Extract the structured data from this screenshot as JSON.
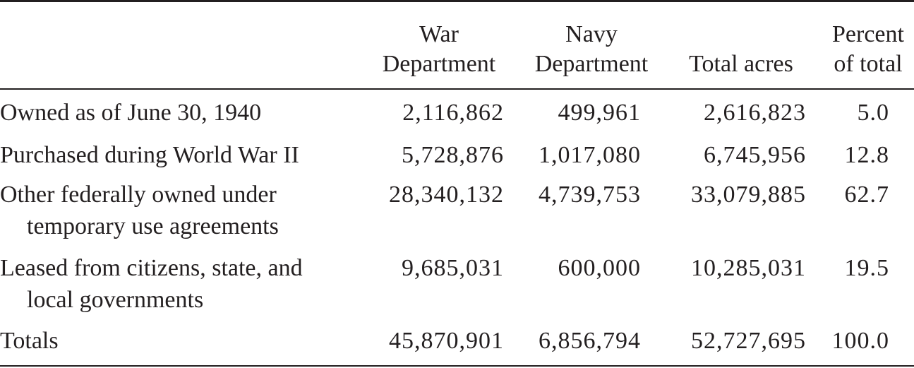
{
  "table": {
    "columns": [
      {
        "line1": "War",
        "line2": "Department"
      },
      {
        "line1": "Navy",
        "line2": "Department"
      },
      {
        "line1": "",
        "line2": "Total acres"
      },
      {
        "line1": "Percent",
        "line2": "of total"
      }
    ],
    "rows": [
      {
        "label1": "Owned as of June 30, 1940",
        "label2": "",
        "war": "2,116,862",
        "navy": "499,961",
        "total": "2,616,823",
        "percent": "5.0"
      },
      {
        "label1": "Purchased during World War II",
        "label2": "",
        "war": "5,728,876",
        "navy": "1,017,080",
        "total": "6,745,956",
        "percent": "12.8"
      },
      {
        "label1": "Other federally owned under",
        "label2": "temporary use agreements",
        "war": "28,340,132",
        "navy": "4,739,753",
        "total": "33,079,885",
        "percent": "62.7"
      },
      {
        "label1": "Leased from citizens, state, and",
        "label2": "local governments",
        "war": "9,685,031",
        "navy": "600,000",
        "total": "10,285,031",
        "percent": "19.5"
      },
      {
        "label1": "Totals",
        "label2": "",
        "war": "45,870,901",
        "navy": "6,856,794",
        "total": "52,727,695",
        "percent": "100.0"
      }
    ]
  }
}
